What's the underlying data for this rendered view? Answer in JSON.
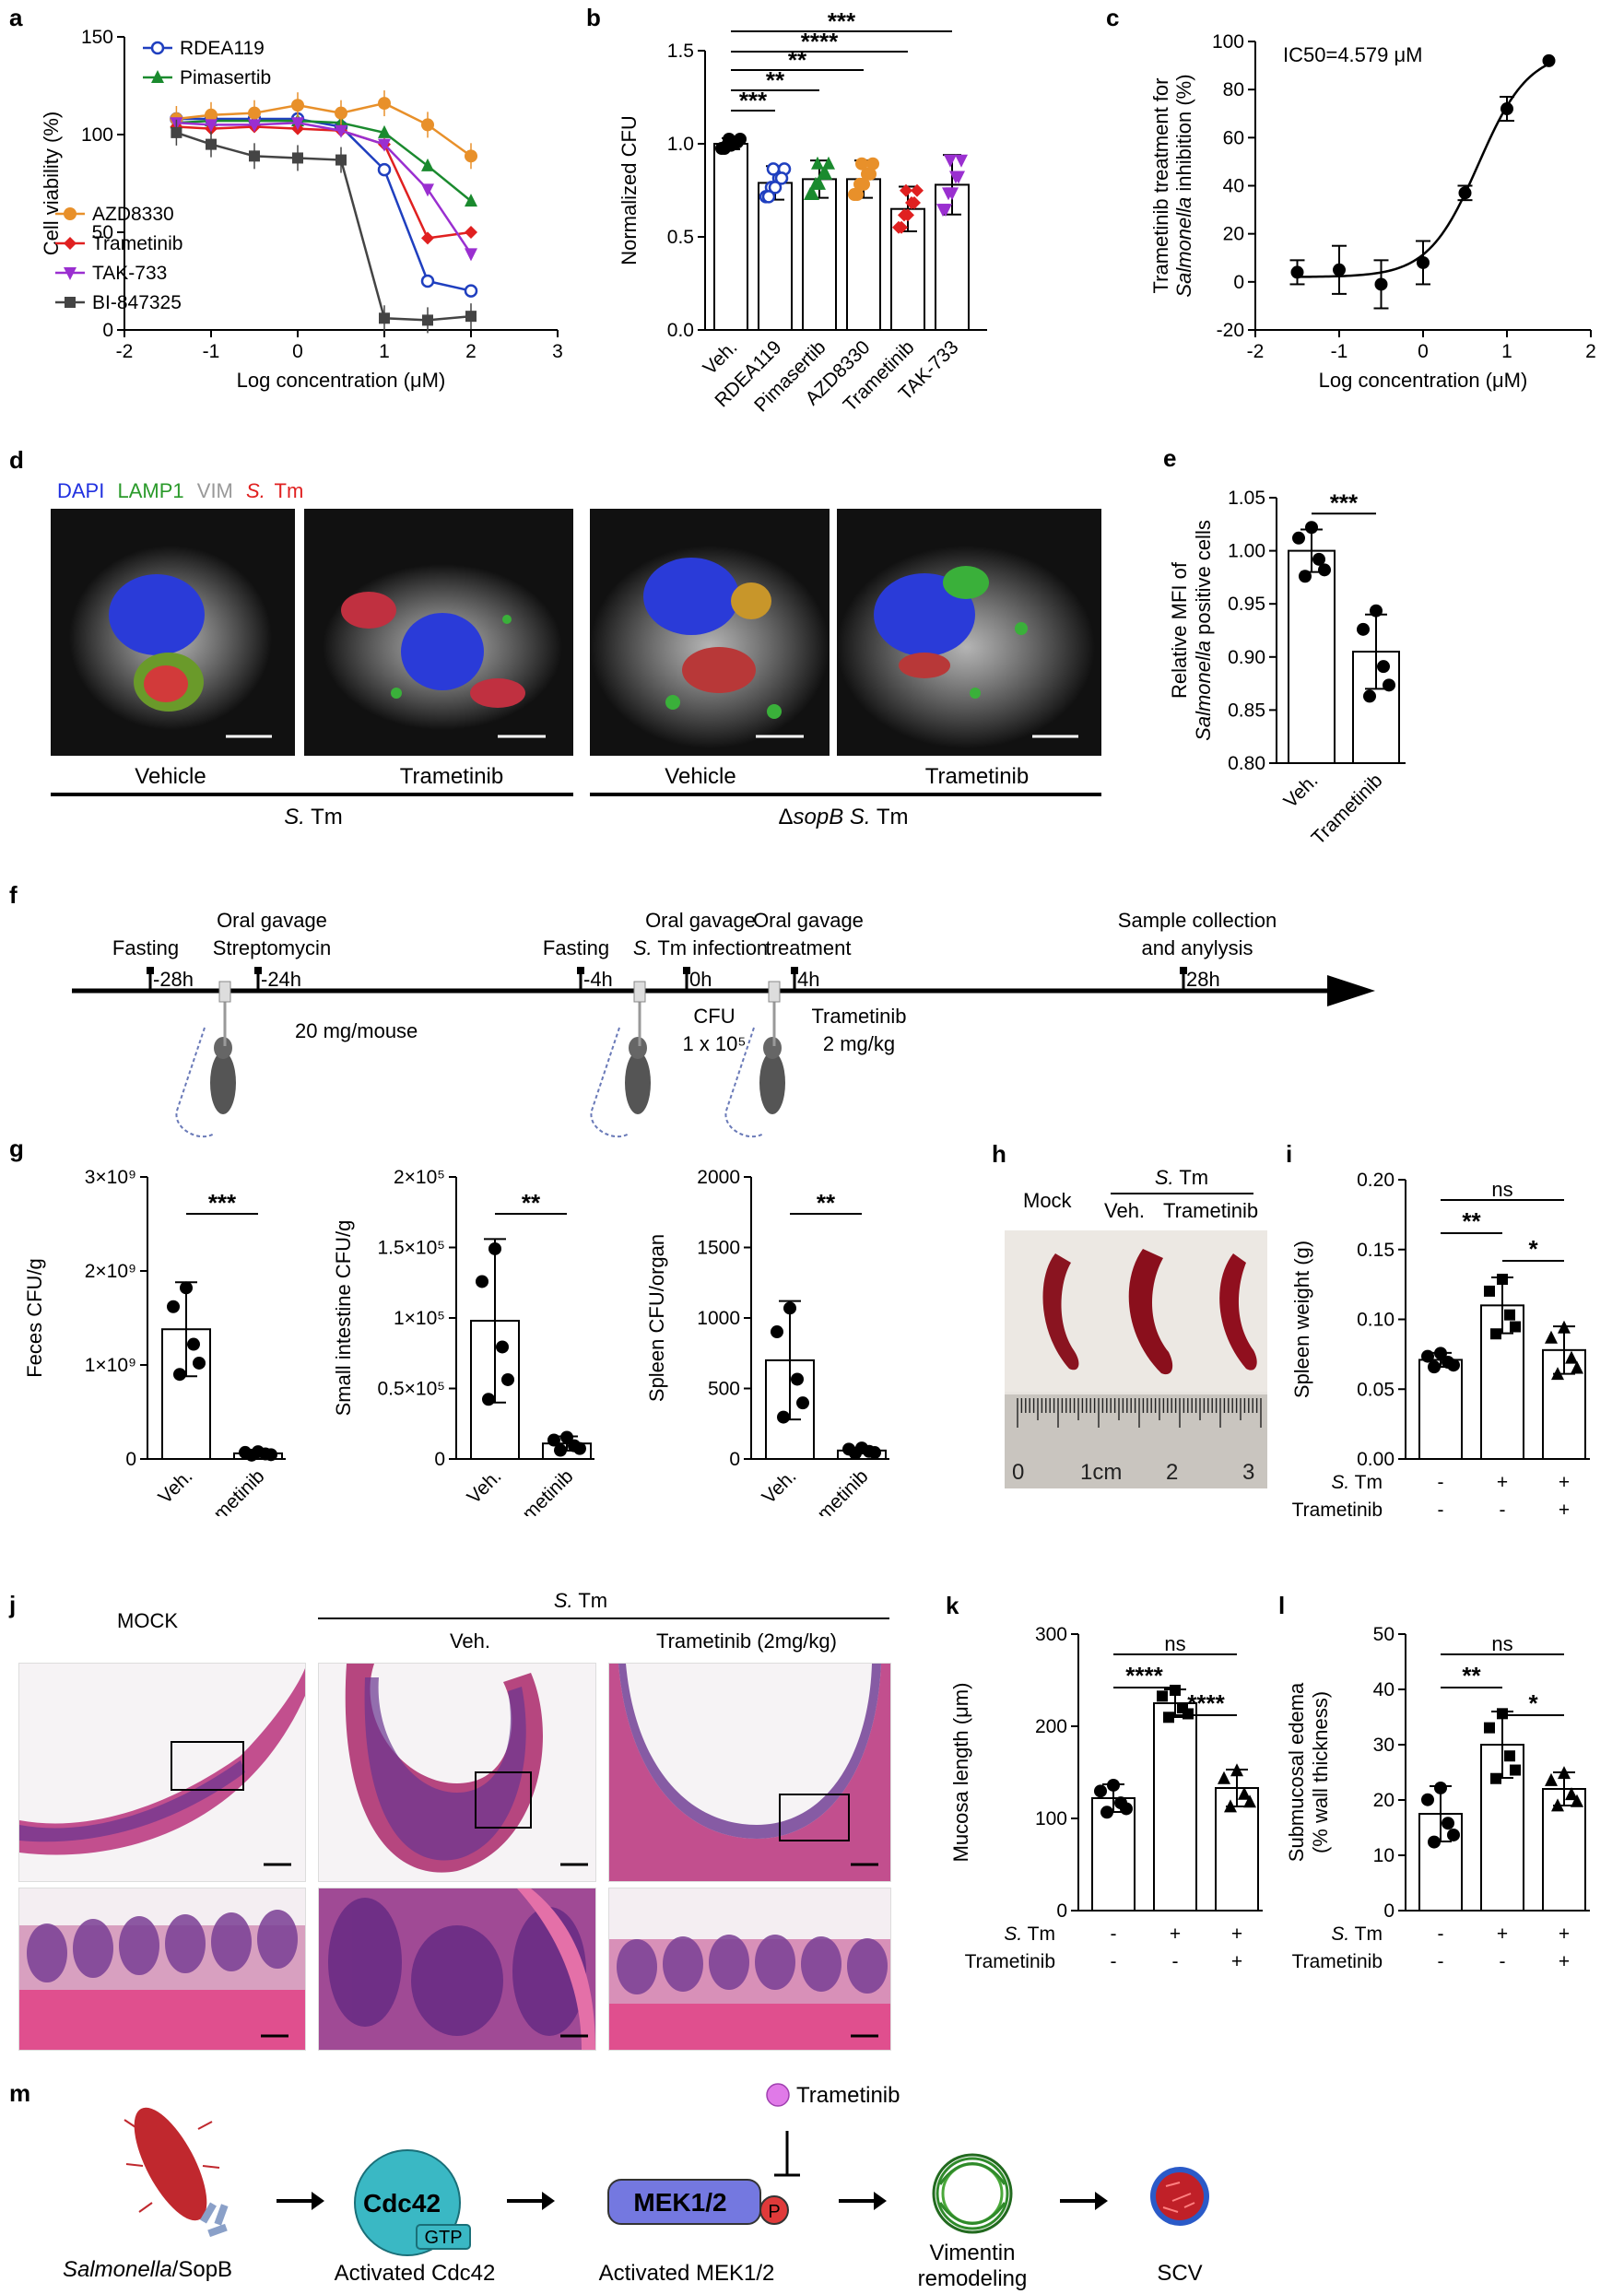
{
  "panels": {
    "a": {
      "label": "a",
      "chart_data": {
        "type": "line",
        "xlabel": "Log concentration (μM)",
        "ylabel": "Cell viability (%)",
        "xlim": [
          -2,
          3
        ],
        "ylim": [
          0,
          150
        ],
        "xticks": [
          "-2",
          "-1",
          "0",
          "1",
          "2",
          "3"
        ],
        "yticks": [
          "0",
          "50",
          "100",
          "150"
        ],
        "x": [
          -1.4,
          -1,
          -0.5,
          0,
          0.5,
          1,
          1.5,
          2
        ],
        "series": [
          {
            "name": "RDEA119",
            "color": "#1f3fbf",
            "marker": "circle-open",
            "values": [
              108,
              108,
              108,
              108,
              104,
              82,
              25,
              20
            ]
          },
          {
            "name": "Pimasertib",
            "color": "#1a8a2e",
            "marker": "triangle",
            "values": [
              106,
              107,
              107,
              107,
              106,
              101,
              84,
              66
            ]
          },
          {
            "name": "AZD8330",
            "color": "#e8902a",
            "marker": "circle",
            "values": [
              108,
              110,
              111,
              115,
              111,
              116,
              105,
              89
            ]
          },
          {
            "name": "Trametinib",
            "color": "#e02020",
            "marker": "diamond",
            "values": [
              104,
              103,
              104,
              103,
              102,
              95,
              47,
              50
            ]
          },
          {
            "name": "TAK-733",
            "color": "#9a2fd0",
            "marker": "triangle-down",
            "values": [
              106,
              105,
              105,
              106,
              102,
              95,
              72,
              39
            ]
          },
          {
            "name": "BI-847325",
            "color": "#444444",
            "marker": "square",
            "values": [
              101,
              95,
              89,
              88,
              87,
              6,
              5,
              7
            ]
          }
        ]
      }
    },
    "b": {
      "label": "b",
      "chart_data": {
        "type": "bar",
        "ylabel": "Normalized CFU",
        "ylim": [
          0,
          1.5
        ],
        "yticks": [
          "0.0",
          "0.5",
          "1.0",
          "1.5"
        ],
        "categories": [
          "Veh.",
          "RDEA119",
          "Pimasertib",
          "AZD8330",
          "Trametinib",
          "TAK-733"
        ],
        "values": [
          1.0,
          0.79,
          0.81,
          0.81,
          0.65,
          0.78
        ],
        "errors": [
          0.03,
          0.09,
          0.1,
          0.1,
          0.12,
          0.16
        ],
        "colors": [
          "#000000",
          "#1f3fbf",
          "#1a8a2e",
          "#e8902a",
          "#e02020",
          "#9a2fd0"
        ],
        "significance": [
          "***",
          "**",
          "**",
          "****",
          "***"
        ]
      }
    },
    "c": {
      "label": "c",
      "annotation": "IC50=4.579 μM",
      "chart_data": {
        "type": "scatter",
        "xlabel": "Log concentration (μM)",
        "ylabel_line1": "Trametinib treatment for",
        "ylabel_line2_italic": "Salmonella",
        "ylabel_line2_rest": " inhibition (%)",
        "xlim": [
          -2,
          2
        ],
        "ylim": [
          -20,
          100
        ],
        "xticks": [
          "-2",
          "-1",
          "0",
          "1",
          "2"
        ],
        "yticks": [
          "-20",
          "0",
          "20",
          "40",
          "60",
          "80",
          "100"
        ],
        "x": [
          -1.5,
          -1,
          -0.5,
          0,
          0.5,
          1,
          1.5
        ],
        "values": [
          4,
          5,
          -1,
          8,
          37,
          72,
          92
        ],
        "errors": [
          5,
          10,
          10,
          9,
          3,
          5,
          0
        ]
      }
    },
    "d": {
      "label": "d",
      "legend": [
        {
          "text": "DAPI",
          "color": "#2030e0"
        },
        {
          "text": "LAMP1",
          "color": "#2a9a2a"
        },
        {
          "text": "VIM",
          "color": "#999999"
        },
        {
          "text": "S.",
          "color": "#e02020",
          "italic": true
        },
        {
          "text": "Tm",
          "color": "#e02020"
        }
      ],
      "captions": [
        "Vehicle",
        "Trametinib",
        "Vehicle",
        "Trametinib"
      ],
      "group1_italic": "S.",
      "group1_rest": " Tm",
      "group2_delta": "Δ",
      "group2_italic": "sopB S.",
      "group2_rest": " Tm"
    },
    "e": {
      "label": "e",
      "chart_data": {
        "type": "bar",
        "ylabel_line1": "Relative MFI of",
        "ylabel_line2_italic": "Salmonella",
        "ylabel_line2_rest": " positive cells",
        "ylim": [
          0.8,
          1.05
        ],
        "yticks": [
          "0.80",
          "0.85",
          "0.90",
          "0.95",
          "1.00",
          "1.05"
        ],
        "categories": [
          "Veh.",
          "Trametinib"
        ],
        "values": [
          1.0,
          0.905
        ],
        "errors": [
          0.02,
          0.035
        ],
        "significance": "***"
      }
    },
    "f": {
      "label": "f",
      "events": [
        {
          "time": "-28h",
          "top": "Fasting"
        },
        {
          "time": "-24h",
          "top1": "Oral gavage",
          "top2": "Streptomycin",
          "bottom": "20 mg/mouse"
        },
        {
          "time": "-4h",
          "top": "Fasting"
        },
        {
          "time": "0h",
          "top1": "Oral gavage",
          "top2_italic": "S.",
          "top2_rest": " Tm infection",
          "bottom1": "CFU",
          "bottom2": "1 x 10⁵"
        },
        {
          "time": "4h",
          "top1": "Oral gavage",
          "top2": "treatment",
          "bottom1": "Trametinib",
          "bottom2": "2 mg/kg"
        },
        {
          "time": "28h",
          "top1": "Sample collection",
          "top2": "and anylysis"
        }
      ]
    },
    "g": {
      "label": "g",
      "charts": [
        {
          "type": "bar",
          "ylabel": "Feces CFU/g",
          "yticks": [
            "0",
            "1×10⁹",
            "2×10⁹",
            "3×10⁹"
          ],
          "ylim": [
            0,
            3
          ],
          "categories": [
            "Veh.",
            "Trametinib"
          ],
          "values": [
            1.38,
            0.06
          ],
          "errors": [
            0.5,
            0.02
          ],
          "significance": "***"
        },
        {
          "type": "bar",
          "ylabel": "Small intestine CFU/g",
          "yticks": [
            "0",
            "0.5×10⁵",
            "1×10⁵",
            "1.5×10⁵",
            "2×10⁵"
          ],
          "ylim": [
            0,
            2
          ],
          "categories": [
            "Veh.",
            "Trametinib"
          ],
          "values": [
            0.98,
            0.11
          ],
          "errors": [
            0.58,
            0.05
          ],
          "significance": "**"
        },
        {
          "type": "bar",
          "ylabel": "Spleen CFU/organ",
          "yticks": [
            "0",
            "500",
            "1000",
            "1500",
            "2000"
          ],
          "ylim": [
            0,
            2000
          ],
          "categories": [
            "Veh.",
            "Trametinib"
          ],
          "values": [
            700,
            60
          ],
          "errors": [
            420,
            20
          ],
          "significance": "**"
        }
      ]
    },
    "h": {
      "label": "h",
      "mock": "Mock",
      "group_italic": "S.",
      "group_rest": " Tm",
      "veh": "Veh.",
      "tram": "Trametinib",
      "ruler": [
        "0",
        "1cm",
        "2",
        "3"
      ]
    },
    "i": {
      "label": "i",
      "chart_data": {
        "type": "bar",
        "ylabel": "Spleen weight (g)",
        "ylim": [
          0,
          0.2
        ],
        "yticks": [
          "0.00",
          "0.05",
          "0.10",
          "0.15",
          "0.20"
        ],
        "values": [
          0.071,
          0.11,
          0.078
        ],
        "errors": [
          0.005,
          0.02,
          0.017
        ],
        "significance": [
          "**",
          "*",
          "ns"
        ]
      },
      "row1_italic": "S.",
      "row1_rest": " Tm",
      "row1": [
        "-",
        "+",
        "+"
      ],
      "row2_label": "Trametinib",
      "row2": [
        "-",
        "-",
        "+"
      ]
    },
    "j": {
      "label": "j",
      "mock": "MOCK",
      "group_italic": "S.",
      "group_rest": " Tm",
      "veh": "Veh.",
      "tram": "Trametinib (2mg/kg)"
    },
    "k": {
      "label": "k",
      "chart_data": {
        "type": "bar",
        "ylabel": "Mucosa length (μm)",
        "ylim": [
          0,
          300
        ],
        "yticks": [
          "0",
          "100",
          "200",
          "300"
        ],
        "values": [
          122,
          225,
          133
        ],
        "errors": [
          15,
          15,
          20
        ],
        "significance": [
          "****",
          "****",
          "ns"
        ]
      },
      "row1_italic": "S.",
      "row1_rest": " Tm",
      "row1": [
        "-",
        "+",
        "+"
      ],
      "row2_label": "Trametinib",
      "row2": [
        "-",
        "-",
        "+"
      ]
    },
    "l": {
      "label": "l",
      "chart_data": {
        "type": "bar",
        "ylabel_line1": "Submucosal edema",
        "ylabel_line2": "(% wall thickness)",
        "ylim": [
          0,
          50
        ],
        "yticks": [
          "0",
          "10",
          "20",
          "30",
          "40",
          "50"
        ],
        "values": [
          17.5,
          30,
          22
        ],
        "errors": [
          5,
          6,
          3
        ],
        "significance": [
          "**",
          "*",
          "ns"
        ]
      },
      "row1_italic": "S.",
      "row1_rest": " Tm",
      "row1": [
        "-",
        "+",
        "+"
      ],
      "row2_label": "Trametinib",
      "row2": [
        "-",
        "-",
        "+"
      ]
    },
    "m": {
      "label": "m",
      "inhibitor": "Trametinib",
      "cdc42": "Cdc42",
      "gtp": "GTP",
      "mek": "MEK1/2",
      "p": "P",
      "cap1_italic": "Salmonella",
      "cap1_rest": "/SopB",
      "cap2": "Activated Cdc42",
      "cap3": "Activated MEK1/2",
      "cap4_1": "Vimentin",
      "cap4_2": "remodeling",
      "cap5": "SCV"
    }
  }
}
